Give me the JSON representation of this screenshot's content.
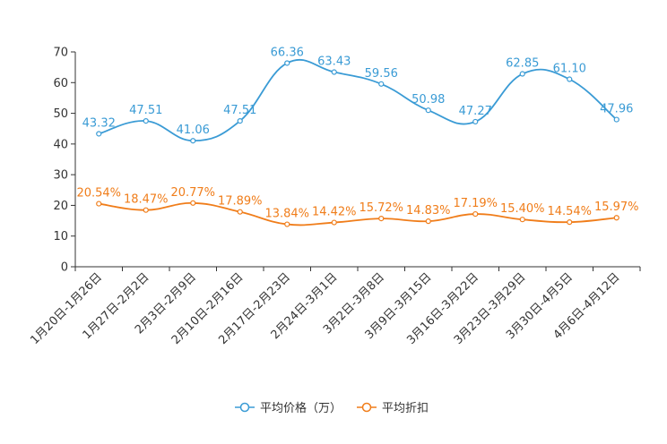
{
  "chart_data": {
    "type": "line",
    "categories": [
      "1月20日-1月26日",
      "1月27日-2月2日",
      "2月3日-2月9日",
      "2月10日-2月16日",
      "2月17日-2月23日",
      "2月24日-3月1日",
      "3月2日-3月8日",
      "3月9日-3月15日",
      "3月16日-3月22日",
      "3月23日-3月29日",
      "3月30日-4月5日",
      "4月6日-4月12日"
    ],
    "series": [
      {
        "name": "平均价格（万）",
        "color": "#3a9bd5",
        "values": [
          43.32,
          47.51,
          41.06,
          47.51,
          66.36,
          63.43,
          59.56,
          50.98,
          47.27,
          62.85,
          61.1,
          47.96
        ],
        "labels": [
          "43.32",
          "47.51",
          "41.06",
          "47.51",
          "66.36",
          "63.43",
          "59.56",
          "50.98",
          "47.27",
          "62.85",
          "61.10",
          "47.96"
        ]
      },
      {
        "name": "平均折扣",
        "color": "#f07d1a",
        "values": [
          20.54,
          18.47,
          20.77,
          17.89,
          13.84,
          14.42,
          15.72,
          14.83,
          17.19,
          15.4,
          14.54,
          15.97
        ],
        "labels": [
          "20.54%",
          "18.47%",
          "20.77%",
          "17.89%",
          "13.84%",
          "14.42%",
          "15.72%",
          "14.83%",
          "17.19%",
          "15.40%",
          "14.54%",
          "15.97%"
        ]
      }
    ],
    "yticks": [
      "0",
      "10",
      "20",
      "30",
      "40",
      "50",
      "60",
      "70"
    ],
    "ylim": [
      0,
      70
    ],
    "smooth": true,
    "legend": "bottom-center",
    "title": "",
    "xlabel": "",
    "ylabel": ""
  }
}
